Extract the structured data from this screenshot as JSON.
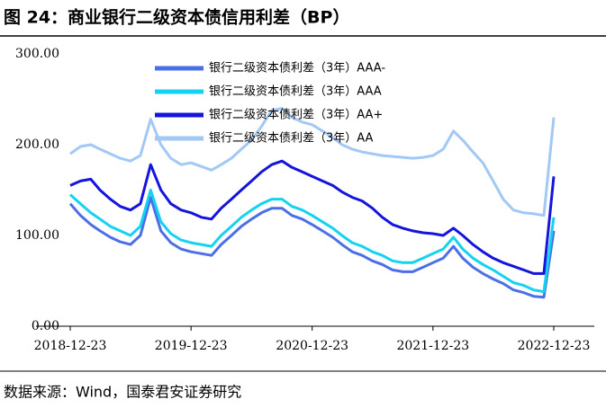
{
  "chart_data": {
    "type": "line",
    "title": "图 24：商业银行二级资本债信用利差（BP）",
    "source": "数据来源：Wind，国泰君安证券研究",
    "x": [
      "2018-12-23",
      "2019-01-23",
      "2019-02-23",
      "2019-03-23",
      "2019-04-23",
      "2019-05-23",
      "2019-06-23",
      "2019-07-23",
      "2019-08-23",
      "2019-09-23",
      "2019-10-23",
      "2019-11-23",
      "2019-12-23",
      "2020-01-23",
      "2020-02-23",
      "2020-03-23",
      "2020-04-23",
      "2020-05-23",
      "2020-06-23",
      "2020-07-23",
      "2020-08-23",
      "2020-09-23",
      "2020-10-23",
      "2020-11-23",
      "2020-12-23",
      "2021-01-23",
      "2021-02-23",
      "2021-03-23",
      "2021-04-23",
      "2021-05-23",
      "2021-06-23",
      "2021-07-23",
      "2021-08-23",
      "2021-09-23",
      "2021-10-23",
      "2021-11-23",
      "2021-12-23",
      "2022-01-23",
      "2022-02-23",
      "2022-03-23",
      "2022-04-23",
      "2022-05-23",
      "2022-06-23",
      "2022-07-23",
      "2022-08-23",
      "2022-09-23",
      "2022-10-23",
      "2022-11-23",
      "2022-12-23"
    ],
    "series": [
      {
        "name": "银行二级资本债利差（3年）AAA-",
        "color": "#4a6fe6",
        "values": [
          135,
          122,
          112,
          105,
          98,
          93,
          90,
          100,
          142,
          105,
          92,
          85,
          82,
          80,
          78,
          90,
          100,
          110,
          118,
          125,
          130,
          130,
          122,
          118,
          112,
          105,
          98,
          90,
          82,
          78,
          72,
          68,
          62,
          60,
          60,
          65,
          70,
          75,
          88,
          75,
          65,
          58,
          52,
          47,
          40,
          37,
          33,
          32,
          105
        ]
      },
      {
        "name": "银行二级资本债利差（3年）AAA",
        "color": "#14d2f0",
        "values": [
          145,
          135,
          125,
          118,
          110,
          105,
          100,
          110,
          150,
          115,
          102,
          95,
          92,
          90,
          88,
          100,
          110,
          120,
          128,
          135,
          140,
          140,
          132,
          128,
          122,
          115,
          108,
          100,
          92,
          88,
          82,
          78,
          72,
          70,
          70,
          75,
          80,
          85,
          98,
          85,
          75,
          68,
          62,
          55,
          48,
          45,
          40,
          38,
          120
        ]
      },
      {
        "name": "银行二级资本债利差（3年）AA+",
        "color": "#1414dc",
        "values": [
          155,
          160,
          162,
          150,
          140,
          132,
          128,
          135,
          178,
          150,
          135,
          128,
          125,
          120,
          118,
          130,
          140,
          150,
          160,
          170,
          178,
          182,
          175,
          170,
          165,
          160,
          155,
          148,
          142,
          138,
          130,
          120,
          112,
          108,
          105,
          103,
          102,
          100,
          108,
          100,
          90,
          82,
          75,
          70,
          66,
          62,
          58,
          58,
          165
        ]
      },
      {
        "name": "银行二级资本债利差（3年）AA",
        "color": "#a2c8f6",
        "values": [
          190,
          198,
          200,
          195,
          190,
          185,
          182,
          188,
          228,
          200,
          185,
          178,
          180,
          176,
          172,
          178,
          185,
          195,
          205,
          220,
          238,
          240,
          230,
          225,
          222,
          215,
          208,
          200,
          195,
          192,
          190,
          188,
          187,
          186,
          185,
          186,
          188,
          195,
          215,
          205,
          192,
          180,
          160,
          140,
          128,
          125,
          124,
          122,
          230
        ]
      }
    ],
    "xlim": [
      "2018-12-23",
      "2022-12-23"
    ],
    "xticks": [
      "2018-12-23",
      "2019-12-23",
      "2020-12-23",
      "2021-12-23",
      "2022-12-23"
    ],
    "ylim": [
      0,
      300
    ],
    "yticks": [
      {
        "value": 0,
        "label": "0.00"
      },
      {
        "value": 100,
        "label": "100.00"
      },
      {
        "value": 200,
        "label": "200.00"
      },
      {
        "value": 300,
        "label": "300.00"
      }
    ]
  }
}
